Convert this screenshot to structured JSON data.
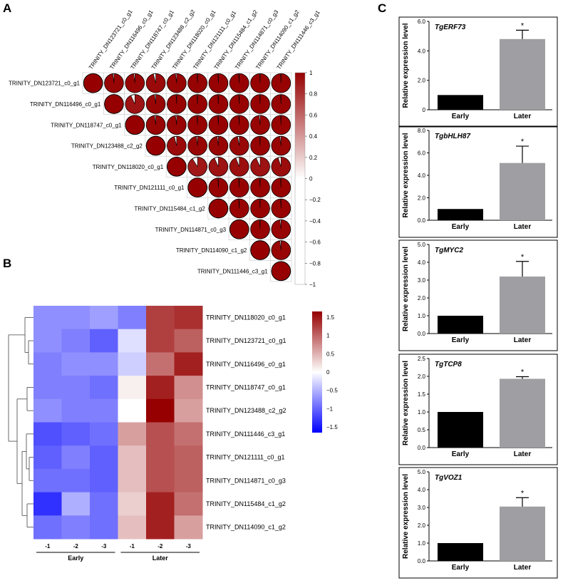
{
  "panels": {
    "a": "A",
    "b": "B",
    "c": "C"
  },
  "genes": [
    "TRINITY_DN123721_c0_g1",
    "TRINITY_DN116496_c0_g1",
    "TRINITY_DN118747_c0_g1",
    "TRINITY_DN123488_c2_g2",
    "TRINITY_DN118020_c0_g1",
    "TRINITY_DN121111_c0_g1",
    "TRINITY_DN115484_c1_g2",
    "TRINITY_DN114871_c0_g3",
    "TRINITY_DN114090_c1_g2",
    "TRINITY_DN111446_c3_g1"
  ],
  "chart_data": [
    {
      "type": "correlation_matrix",
      "panel": "A",
      "labels": [
        "TRINITY_DN123721_c0_g1",
        "TRINITY_DN116496_c0_g1",
        "TRINITY_DN118747_c0_g1",
        "TRINITY_DN123488_c2_g2",
        "TRINITY_DN118020_c0_g1",
        "TRINITY_DN121111_c0_g1",
        "TRINITY_DN115484_c1_g2",
        "TRINITY_DN114871_c0_g3",
        "TRINITY_DN114090_c1_g2",
        "TRINITY_DN111446_c3_g1"
      ],
      "upper_triangle": [
        [
          1,
          0.98,
          0.98,
          0.96,
          0.98,
          0.99,
          0.99,
          0.99,
          0.99,
          0.99
        ],
        [
          1,
          0.93,
          0.98,
          0.99,
          0.99,
          0.99,
          0.99,
          0.99,
          0.99
        ],
        [
          1,
          0.98,
          0.98,
          0.99,
          0.99,
          0.99,
          0.98,
          0.99
        ],
        [
          1,
          0.96,
          0.98,
          0.98,
          0.97,
          0.99,
          0.98
        ],
        [
          1,
          0.91,
          0.93,
          0.94,
          0.93,
          0.95
        ],
        [
          1,
          0.99,
          0.99,
          0.99,
          0.99
        ],
        [
          1,
          0.99,
          0.99,
          0.99
        ],
        [
          1,
          0.99,
          0.98
        ],
        [
          1,
          0.98
        ],
        [
          1
        ]
      ],
      "colorbar_ticks": [
        "1",
        "0.8",
        "0.6",
        "0.4",
        "0.2",
        "0",
        "−0.2",
        "−0.4",
        "−0.6",
        "−0.8",
        "−1"
      ],
      "colorbar_range": [
        -1,
        1
      ]
    },
    {
      "type": "heatmap",
      "panel": "B",
      "row_labels": [
        "TRINITY_DN118020_c0_g1",
        "TRINITY_DN123721_c0_g1",
        "TRINITY_DN116496_c0_g1",
        "TRINITY_DN118747_c0_g1",
        "TRINITY_DN123488_c2_g2",
        "TRINITY_DN111446_c3_g1",
        "TRINITY_DN121111_c0_g1",
        "TRINITY_DN114871_c0_g3",
        "TRINITY_DN115484_c1_g2",
        "TRINITY_DN114090_c1_g2"
      ],
      "col_labels": [
        "-1",
        "-2",
        "-3",
        "-1",
        "-2",
        "-3"
      ],
      "groups": [
        {
          "name": "Early",
          "cols": [
            0,
            1,
            2
          ]
        },
        {
          "name": "Later",
          "cols": [
            3,
            4,
            5
          ]
        }
      ],
      "values": [
        [
          -0.7,
          -0.7,
          -0.6,
          -0.8,
          1.2,
          1.3
        ],
        [
          -0.7,
          -0.8,
          -1.0,
          -0.2,
          1.2,
          1.0
        ],
        [
          -0.8,
          -0.7,
          -0.7,
          -0.3,
          0.9,
          1.4
        ],
        [
          -0.8,
          -0.8,
          -0.9,
          0.1,
          1.4,
          0.7
        ],
        [
          -0.7,
          -0.8,
          -0.8,
          0.0,
          1.6,
          0.6
        ],
        [
          -1.1,
          -1.0,
          -0.9,
          0.6,
          1.1,
          0.9
        ],
        [
          -1.0,
          -0.8,
          -1.0,
          0.4,
          1.1,
          1.0
        ],
        [
          -0.9,
          -0.9,
          -1.0,
          0.4,
          1.1,
          1.0
        ],
        [
          -1.3,
          -0.5,
          -0.9,
          0.3,
          1.4,
          0.9
        ],
        [
          -0.9,
          -0.8,
          -0.9,
          0.4,
          1.4,
          0.6
        ]
      ],
      "colorbar_ticks": [
        "1.5",
        "1",
        "0.5",
        "0",
        "−0.5",
        "−1",
        "−1.5"
      ],
      "colorbar_range": [
        -1.5,
        1.5
      ]
    },
    {
      "type": "bar",
      "panel": "C",
      "ylabel": "Relative expression level",
      "categories": [
        "Early",
        "Later"
      ],
      "charts": [
        {
          "title": "TgERF73",
          "values": [
            1.0,
            4.8
          ],
          "errors": [
            0,
            0.6
          ],
          "ylim": [
            0,
            6
          ],
          "yticks": [
            "0",
            "2.0",
            "4.0",
            "6.0"
          ],
          "annotation": "*"
        },
        {
          "title": "TgbHLH87",
          "values": [
            1.0,
            5.1
          ],
          "errors": [
            0,
            1.5
          ],
          "ylim": [
            0,
            8
          ],
          "yticks": [
            "0.0",
            "2.0",
            "4.0",
            "6.0",
            "8.0"
          ],
          "annotation": "*"
        },
        {
          "title": "TgMYC2",
          "values": [
            1.0,
            3.2
          ],
          "errors": [
            0,
            0.85
          ],
          "ylim": [
            0,
            5
          ],
          "yticks": [
            "0.0",
            "1.0",
            "2.0",
            "3.0",
            "4.0",
            "5.0"
          ],
          "annotation": "*"
        },
        {
          "title": "TgTCP8",
          "values": [
            1.0,
            1.93
          ],
          "errors": [
            0,
            0.06
          ],
          "ylim": [
            0,
            2.5
          ],
          "yticks": [
            "0.0",
            "0.5",
            "1.0",
            "1.5",
            "2.0",
            "2.5"
          ],
          "annotation": "*"
        },
        {
          "title": "TgVOZ1",
          "values": [
            1.0,
            3.05
          ],
          "errors": [
            0,
            0.5
          ],
          "ylim": [
            0,
            5
          ],
          "yticks": [
            "0.0",
            "1.0",
            "2.0",
            "3.0",
            "4.0",
            "5.0"
          ],
          "annotation": "*"
        }
      ]
    }
  ]
}
